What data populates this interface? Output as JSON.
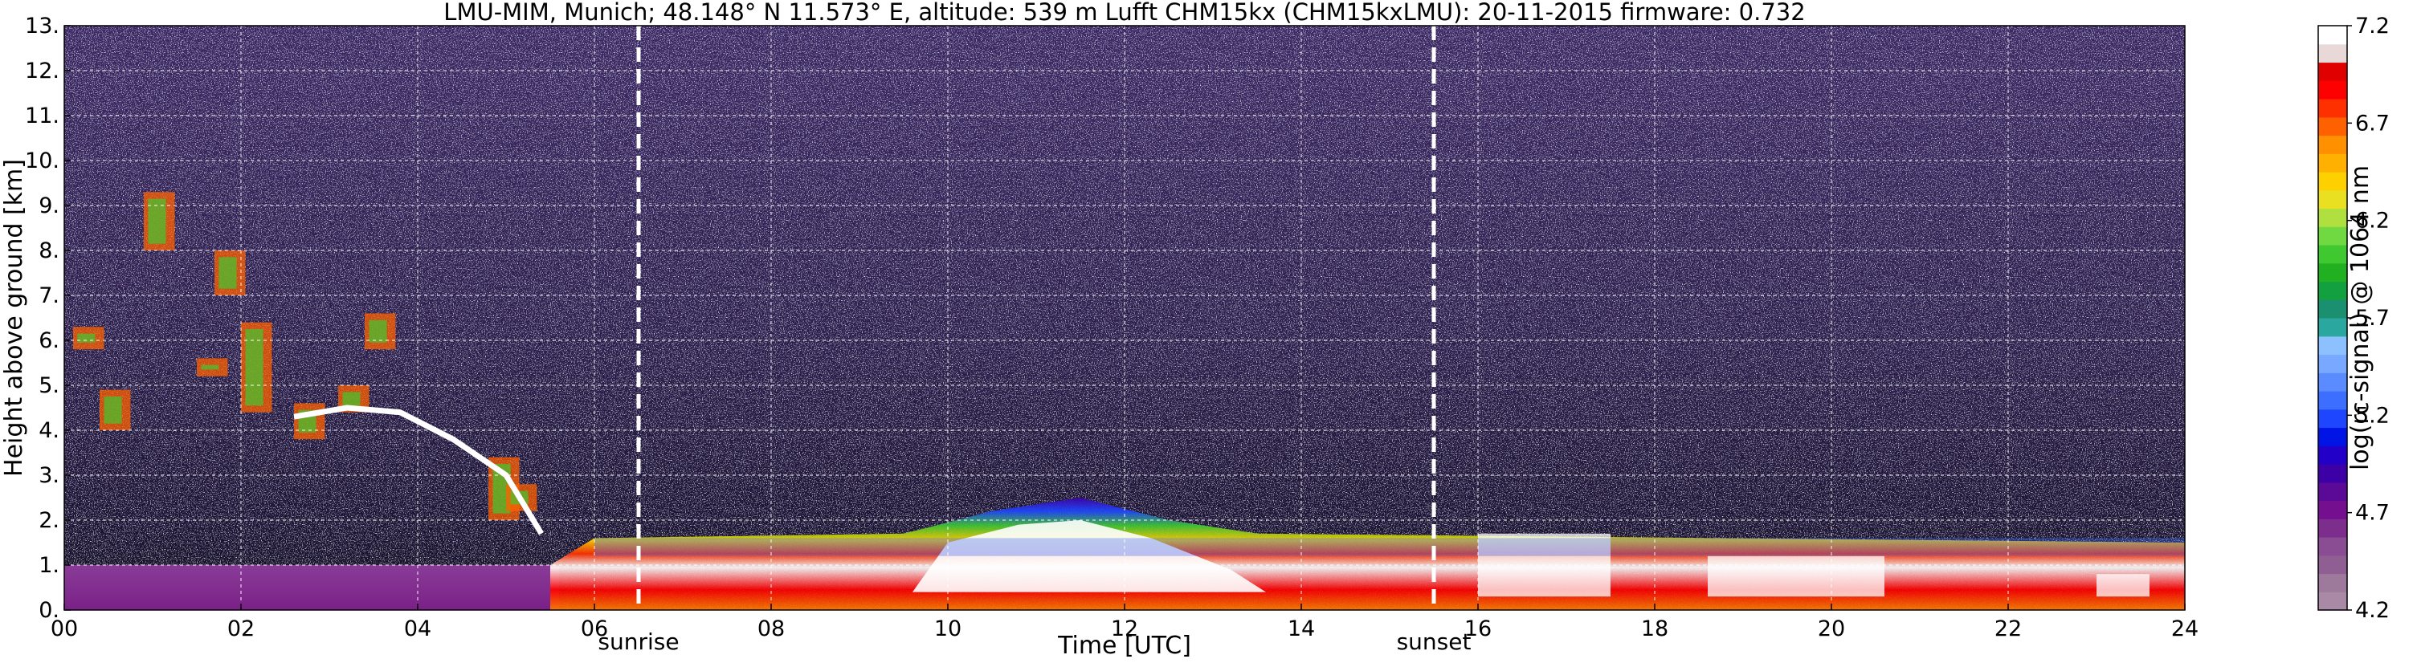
{
  "chart_data": {
    "type": "heatmap",
    "title": "LMU-MIM, Munich; 48.148° N 11.573° E, altitude: 539 m    Lufft CHM15kx (CHM15kxLMU): 20-11-2015    firmware: 0.732",
    "xlabel": "Time [UTC]",
    "ylabel": "Height above ground [km]",
    "xlim": [
      0,
      24
    ],
    "ylim": [
      0,
      13
    ],
    "x_ticks": [
      {
        "v": 0,
        "label": "00"
      },
      {
        "v": 2,
        "label": "02"
      },
      {
        "v": 4,
        "label": "04"
      },
      {
        "v": 6,
        "label": "06"
      },
      {
        "v": 8,
        "label": "08"
      },
      {
        "v": 10,
        "label": "10"
      },
      {
        "v": 12,
        "label": "12"
      },
      {
        "v": 14,
        "label": "14"
      },
      {
        "v": 16,
        "label": "16"
      },
      {
        "v": 18,
        "label": "18"
      },
      {
        "v": 20,
        "label": "20"
      },
      {
        "v": 22,
        "label": "22"
      },
      {
        "v": 24,
        "label": "24"
      }
    ],
    "y_ticks": [
      {
        "v": 0,
        "label": "0."
      },
      {
        "v": 1,
        "label": "1."
      },
      {
        "v": 2,
        "label": "2."
      },
      {
        "v": 3,
        "label": "3."
      },
      {
        "v": 4,
        "label": "4."
      },
      {
        "v": 5,
        "label": "5."
      },
      {
        "v": 6,
        "label": "6."
      },
      {
        "v": 7,
        "label": "7."
      },
      {
        "v": 8,
        "label": "8."
      },
      {
        "v": 9,
        "label": "9."
      },
      {
        "v": 10,
        "label": "10."
      },
      {
        "v": 11,
        "label": "11."
      },
      {
        "v": 12,
        "label": "12."
      },
      {
        "v": 13,
        "label": "13."
      }
    ],
    "grid": true,
    "events": [
      {
        "name": "sunrise",
        "x": 6.5
      },
      {
        "name": "sunset",
        "x": 15.5
      }
    ],
    "colorbar": {
      "label": "log(rc-signal) @ 1064 nm",
      "range": [
        4.2,
        7.2
      ],
      "ticks": [
        {
          "v": 4.2,
          "label": "4.2"
        },
        {
          "v": 4.7,
          "label": "4.7"
        },
        {
          "v": 5.2,
          "label": "5.2"
        },
        {
          "v": 5.7,
          "label": "5.7"
        },
        {
          "v": 6.2,
          "label": "6.2"
        },
        {
          "v": 6.7,
          "label": "6.7"
        },
        {
          "v": 7.2,
          "label": "7.2"
        }
      ],
      "colors": [
        "#a88aa6",
        "#9d7a9c",
        "#8f5e92",
        "#8a4c92",
        "#7d2e8c",
        "#74108f",
        "#5a0a96",
        "#3c00a6",
        "#2200c8",
        "#0014e6",
        "#1e46ff",
        "#3c6eff",
        "#5a8cff",
        "#78a8ff",
        "#8cc0ff",
        "#2aa8a0",
        "#1a9070",
        "#12a040",
        "#20b020",
        "#40c830",
        "#70d840",
        "#b0e040",
        "#e8e020",
        "#ffd000",
        "#ffb000",
        "#ff9000",
        "#ff6000",
        "#ff3000",
        "#ff0000",
        "#e00000",
        "#e8d8d8",
        "#ffffff"
      ]
    },
    "layers": {
      "background_noise": {
        "from_km": 2.0,
        "to_km": 13,
        "level": 4.9
      },
      "boundary_layer": [
        {
          "t": 0,
          "top": 1.0
        },
        {
          "t": 5.5,
          "top": 1.0
        },
        {
          "t": 6,
          "top": 1.6
        },
        {
          "t": 9.5,
          "top": 1.7
        },
        {
          "t": 10.5,
          "top": 2.2
        },
        {
          "t": 11.5,
          "top": 2.5
        },
        {
          "t": 12.5,
          "top": 2.0
        },
        {
          "t": 13.5,
          "top": 1.7
        },
        {
          "t": 24,
          "top": 1.5
        }
      ]
    }
  }
}
